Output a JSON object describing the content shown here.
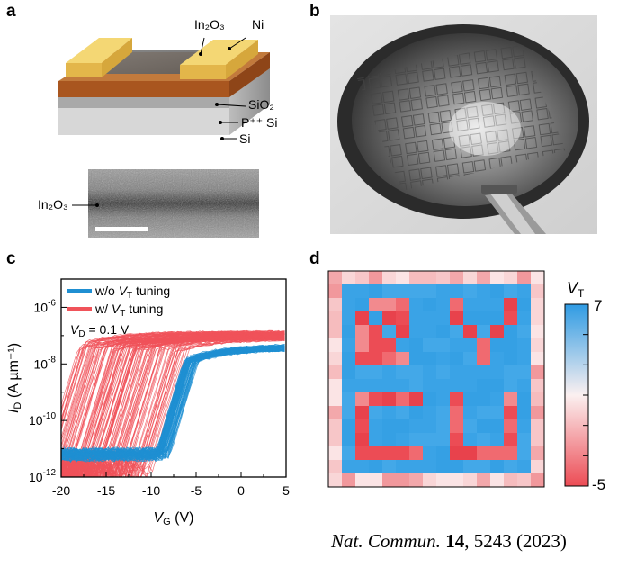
{
  "panels": {
    "a": {
      "letter": "a",
      "labels": {
        "in2o3": "In₂O₃",
        "ni": "Ni",
        "sio2": "SiO₂",
        "psi": "P⁺⁺ Si",
        "si": "Si",
        "in2o3_tem": "In₂O₃"
      }
    },
    "b": {
      "letter": "b"
    },
    "c": {
      "letter": "c"
    },
    "d": {
      "letter": "d"
    }
  },
  "chart_data": [
    {
      "type": "line",
      "panel": "c",
      "xlabel_main": "V",
      "xlabel_sub": "G",
      "xlabel_unit": " (V)",
      "ylabel_main": "I",
      "ylabel_sub": "D",
      "ylabel_unit": " (A µm⁻¹)",
      "xlim": [
        -20,
        5
      ],
      "ylim_log10": [
        -12,
        -5
      ],
      "x_ticks": [
        "-20",
        "-15",
        "-10",
        "-5",
        "0",
        "5"
      ],
      "y_ticks": [
        {
          "base": "10",
          "exp": "-12"
        },
        {
          "base": "10",
          "exp": "-10"
        },
        {
          "base": "10",
          "exp": "-8"
        },
        {
          "base": "10",
          "exp": "-6"
        }
      ],
      "legend_position": "top-left",
      "annotation": {
        "main": "V",
        "sub": "D",
        "rest": " = 0.1 V"
      },
      "series": [
        {
          "legend_pre": "w/o ",
          "legend_var": "V",
          "legend_sub": "T",
          "legend_post": " tuning",
          "color": "#1f8fd2",
          "threshold_voltage_range": [
            -6.5,
            -5
          ],
          "off_current_log10": -11.2,
          "on_current_log10_at_5V": -7.4
        },
        {
          "legend_pre": "w/ ",
          "legend_var": "V",
          "legend_sub": "T",
          "legend_post": " tuning",
          "color": "#f0535a",
          "threshold_voltage_range": [
            -19,
            -7
          ],
          "off_current_log10": -11.8,
          "on_current_log10_at_5V": -7.0
        }
      ]
    },
    {
      "type": "heatmap",
      "panel": "d",
      "colorbar_title_main": "V",
      "colorbar_title_sub": "T",
      "colorbar_range": [
        -5,
        7
      ],
      "colorbar_ticks_labeled": [
        "7",
        "-5"
      ],
      "colors": {
        "high": "#3aa3e6",
        "mid": "#fbf0f0",
        "low": "#ec4c55"
      },
      "grid_size": [
        16,
        16
      ],
      "pattern_letters": "NYCU"
    }
  ],
  "citation": {
    "journal": "Nat. Commun.",
    "volume": "14",
    "rest": ", 5243 (2023)"
  }
}
